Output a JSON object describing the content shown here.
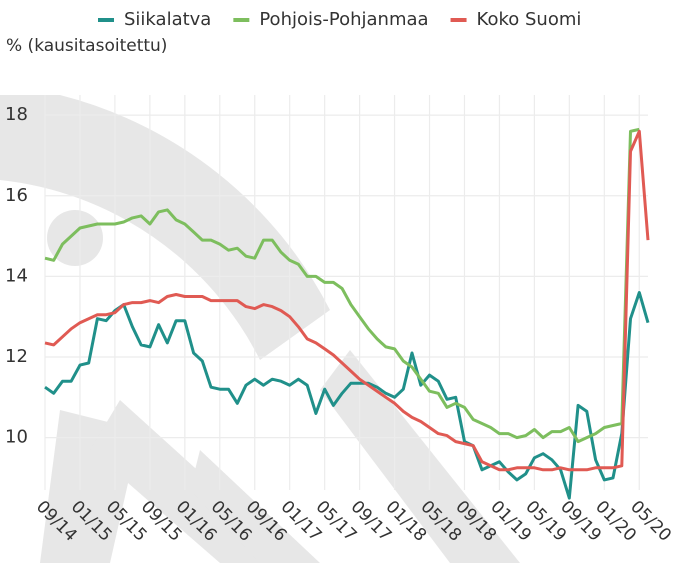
{
  "chart_data": {
    "type": "line",
    "y_label": "% (kausitasoitettu)",
    "categories": [
      "09/14",
      null,
      null,
      null,
      "01/15",
      null,
      null,
      null,
      "05/15",
      null,
      null,
      null,
      "09/15",
      null,
      null,
      null,
      "01/16",
      null,
      null,
      null,
      "05/16",
      null,
      null,
      null,
      "09/16",
      null,
      null,
      null,
      "01/17",
      null,
      null,
      null,
      "05/17",
      null,
      null,
      null,
      "09/17",
      null,
      null,
      null,
      "01/18",
      null,
      null,
      null,
      "05/18",
      null,
      null,
      null,
      "09/18",
      null,
      null,
      null,
      "01/19",
      null,
      null,
      null,
      "05/19",
      null,
      null,
      null,
      "09/19",
      null,
      null,
      null,
      "01/20",
      null,
      null,
      null,
      "05/20",
      null
    ],
    "series": [
      {
        "name": "Siikalatva",
        "color": "#20908a",
        "values": [
          11.25,
          11.1,
          11.4,
          11.4,
          11.8,
          11.85,
          12.95,
          12.9,
          13.15,
          13.3,
          12.75,
          12.3,
          12.25,
          12.8,
          12.35,
          12.9,
          12.9,
          12.1,
          11.9,
          11.25,
          11.2,
          11.2,
          10.85,
          11.3,
          11.45,
          11.3,
          11.45,
          11.4,
          11.3,
          11.45,
          11.3,
          10.6,
          11.2,
          10.8,
          11.1,
          11.35,
          11.35,
          11.35,
          11.25,
          11.1,
          11.0,
          11.2,
          12.1,
          11.3,
          11.55,
          11.4,
          10.95,
          11.0,
          9.9,
          9.8,
          9.2,
          9.3,
          9.4,
          9.15,
          8.95,
          9.1,
          9.5,
          9.6,
          9.45,
          9.2,
          8.5,
          10.8,
          10.65,
          9.45,
          8.95,
          9.0,
          10.1,
          12.95,
          13.6,
          12.85
        ]
      },
      {
        "name": "Pohjois-Pohjanmaa",
        "color": "#7dbe5e",
        "values": [
          14.45,
          14.4,
          14.8,
          15.0,
          15.2,
          15.25,
          15.3,
          15.3,
          15.3,
          15.35,
          15.45,
          15.5,
          15.3,
          15.6,
          15.65,
          15.4,
          15.3,
          15.1,
          14.9,
          14.9,
          14.8,
          14.65,
          14.7,
          14.5,
          14.45,
          14.9,
          14.9,
          14.6,
          14.4,
          14.3,
          14.0,
          14.0,
          13.85,
          13.85,
          13.7,
          13.3,
          13.0,
          12.7,
          12.45,
          12.25,
          12.2,
          11.9,
          11.75,
          11.45,
          11.15,
          11.1,
          10.75,
          10.85,
          10.75,
          10.45,
          10.35,
          10.25,
          10.1,
          10.1,
          10.0,
          10.05,
          10.2,
          10.0,
          10.15,
          10.15,
          10.25,
          9.9,
          10.0,
          10.1,
          10.25,
          10.3,
          10.35,
          17.6,
          17.65,
          null
        ]
      },
      {
        "name": "Koko Suomi",
        "color": "#e05a53",
        "values": [
          12.35,
          12.3,
          12.5,
          12.7,
          12.85,
          12.95,
          13.05,
          13.05,
          13.1,
          13.3,
          13.35,
          13.35,
          13.4,
          13.35,
          13.5,
          13.55,
          13.5,
          13.5,
          13.5,
          13.4,
          13.4,
          13.4,
          13.4,
          13.25,
          13.2,
          13.3,
          13.25,
          13.15,
          13.0,
          12.75,
          12.45,
          12.35,
          12.2,
          12.05,
          11.85,
          11.65,
          11.45,
          11.3,
          11.15,
          11.0,
          10.85,
          10.65,
          10.5,
          10.4,
          10.25,
          10.1,
          10.05,
          9.9,
          9.85,
          9.8,
          9.4,
          9.3,
          9.2,
          9.2,
          9.25,
          9.25,
          9.25,
          9.2,
          9.2,
          9.25,
          9.2,
          9.2,
          9.2,
          9.25,
          9.25,
          9.25,
          9.3,
          17.1,
          17.6,
          14.9
        ]
      }
    ],
    "ylim": [
      8.7,
      18.5
    ],
    "yticks": [
      10,
      12,
      14,
      16,
      18
    ],
    "grid": true
  }
}
